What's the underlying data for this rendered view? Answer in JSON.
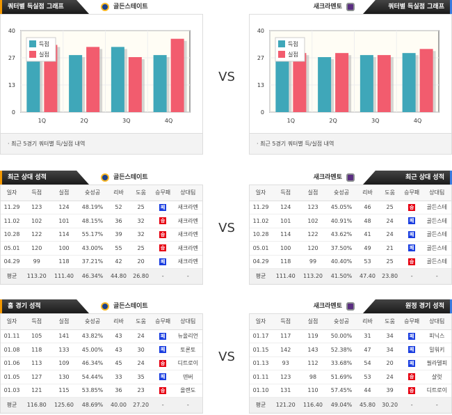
{
  "vs_label": "VS",
  "teams": {
    "home": "골든스테이트",
    "away": "새크라멘토"
  },
  "colors": {
    "scored": "#3fa7b9",
    "allowed": "#f25c6e",
    "win": "#e60012",
    "loss": "#1a3ee0"
  },
  "quarter_section": {
    "title": "쿼터별 득실점 그래프",
    "footer": "· 최근 5경기 쿼터별 득/실점 내역"
  },
  "chart_data": [
    {
      "type": "bar",
      "team": "골든스테이트",
      "categories": [
        "1Q",
        "2Q",
        "3Q",
        "4Q"
      ],
      "yticks": [
        "0",
        "13",
        "27",
        "40"
      ],
      "ylim": [
        0,
        40
      ],
      "series": [
        {
          "name": "득점",
          "values": [
            28,
            28,
            32,
            28
          ]
        },
        {
          "name": "실점",
          "values": [
            33,
            32,
            27,
            36
          ]
        }
      ],
      "legend": "top-left"
    },
    {
      "type": "bar",
      "team": "새크라멘토",
      "categories": [
        "1Q",
        "2Q",
        "3Q",
        "4Q"
      ],
      "yticks": [
        "0",
        "13",
        "27",
        "40"
      ],
      "ylim": [
        0,
        40
      ],
      "series": [
        {
          "name": "득점",
          "values": [
            31,
            27,
            28,
            29
          ]
        },
        {
          "name": "실점",
          "values": [
            29,
            29,
            28,
            31
          ]
        }
      ],
      "legend": "top-left"
    }
  ],
  "columns": [
    "일자",
    "득점",
    "실점",
    "슛성공",
    "리바",
    "도움",
    "승무패",
    "상대팀"
  ],
  "tables": [
    {
      "title": "최근 상대 성적",
      "team": "골든스테이트",
      "side": "l",
      "rows": [
        [
          "11.29",
          "123",
          "124",
          "48.19%",
          "52",
          "25",
          "패",
          "새크라멘"
        ],
        [
          "11.02",
          "102",
          "101",
          "48.15%",
          "36",
          "32",
          "승",
          "새크라멘"
        ],
        [
          "10.28",
          "122",
          "114",
          "55.17%",
          "39",
          "32",
          "승",
          "새크라멘"
        ],
        [
          "05.01",
          "120",
          "100",
          "43.00%",
          "55",
          "25",
          "승",
          "새크라멘"
        ],
        [
          "04.29",
          "99",
          "118",
          "37.21%",
          "42",
          "20",
          "패",
          "새크라멘"
        ]
      ],
      "avg": [
        "평균",
        "113.20",
        "111.40",
        "46.34%",
        "44.80",
        "26.80",
        "-",
        "-"
      ]
    },
    {
      "title": "최근 상대 성적",
      "team": "새크라멘토",
      "side": "r",
      "rows": [
        [
          "11.29",
          "124",
          "123",
          "45.05%",
          "46",
          "25",
          "승",
          "골든스테"
        ],
        [
          "11.02",
          "101",
          "102",
          "40.91%",
          "48",
          "24",
          "패",
          "골든스테"
        ],
        [
          "10.28",
          "114",
          "122",
          "43.62%",
          "41",
          "24",
          "패",
          "골든스테"
        ],
        [
          "05.01",
          "100",
          "120",
          "37.50%",
          "49",
          "21",
          "패",
          "골든스테"
        ],
        [
          "04.29",
          "118",
          "99",
          "40.40%",
          "53",
          "25",
          "승",
          "골든스테"
        ]
      ],
      "avg": [
        "평균",
        "111.40",
        "113.20",
        "41.50%",
        "47.40",
        "23.80",
        "-",
        "-"
      ]
    },
    {
      "title": "홈 경기 성적",
      "team": "골든스테이트",
      "side": "l",
      "rows": [
        [
          "01.11",
          "105",
          "141",
          "43.82%",
          "43",
          "24",
          "패",
          "뉴올리언"
        ],
        [
          "01.08",
          "118",
          "133",
          "45.00%",
          "43",
          "30",
          "패",
          "토론토"
        ],
        [
          "01.06",
          "113",
          "109",
          "46.34%",
          "45",
          "24",
          "승",
          "디트로이"
        ],
        [
          "01.05",
          "127",
          "130",
          "54.44%",
          "33",
          "35",
          "패",
          "덴버"
        ],
        [
          "01.03",
          "121",
          "115",
          "53.85%",
          "36",
          "23",
          "승",
          "올랜도"
        ]
      ],
      "avg": [
        "평균",
        "116.80",
        "125.60",
        "48.69%",
        "40.00",
        "27.20",
        "-",
        "-"
      ]
    },
    {
      "title": "원정 경기 성적",
      "team": "새크라멘토",
      "side": "r",
      "rows": [
        [
          "01.17",
          "117",
          "119",
          "50.00%",
          "31",
          "34",
          "패",
          "피닉스"
        ],
        [
          "01.15",
          "142",
          "143",
          "52.38%",
          "47",
          "34",
          "패",
          "밀워키"
        ],
        [
          "01.13",
          "93",
          "112",
          "33.68%",
          "54",
          "20",
          "패",
          "필라델피"
        ],
        [
          "01.11",
          "123",
          "98",
          "51.69%",
          "53",
          "24",
          "승",
          "샬럿"
        ],
        [
          "01.10",
          "131",
          "110",
          "57.45%",
          "44",
          "39",
          "승",
          "디트로이"
        ]
      ],
      "avg": [
        "평균",
        "121.20",
        "116.40",
        "49.04%",
        "45.80",
        "30.20",
        "-",
        "-"
      ]
    }
  ]
}
